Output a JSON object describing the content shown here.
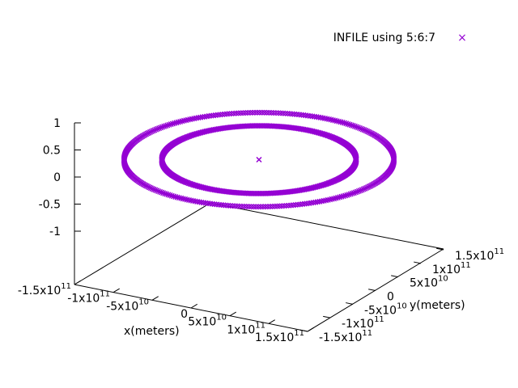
{
  "chart_data": {
    "type": "scatter",
    "subtype": "3d",
    "title": "",
    "legend": {
      "placement": "top-right",
      "entries": [
        {
          "label": "INFILE using 5:6:7",
          "marker": "×",
          "color": "#9400d3"
        }
      ]
    },
    "xlabel": "x(meters)",
    "ylabel": "y(meters)",
    "zlabel": "",
    "xlim": [
      -150000000000,
      150000000000
    ],
    "ylim": [
      -150000000000,
      150000000000
    ],
    "zlim": [
      -1,
      1
    ],
    "x_ticks": [
      {
        "value": -150000000000,
        "mantissa": "-1.5x10",
        "exp": "11"
      },
      {
        "value": -100000000000,
        "mantissa": "-1x10",
        "exp": "11"
      },
      {
        "value": -50000000000,
        "mantissa": "-5x10",
        "exp": "10"
      },
      {
        "value": 0,
        "mantissa": "0",
        "exp": ""
      },
      {
        "value": 50000000000,
        "mantissa": "5x10",
        "exp": "10"
      },
      {
        "value": 100000000000,
        "mantissa": "1x10",
        "exp": "11"
      },
      {
        "value": 150000000000,
        "mantissa": "1.5x10",
        "exp": "11"
      }
    ],
    "y_ticks": [
      {
        "value": -150000000000,
        "mantissa": "-1.5x10",
        "exp": "11"
      },
      {
        "value": -100000000000,
        "mantissa": "-1x10",
        "exp": "11"
      },
      {
        "value": -50000000000,
        "mantissa": "-5x10",
        "exp": "10"
      },
      {
        "value": 0,
        "mantissa": "0",
        "exp": ""
      },
      {
        "value": 50000000000,
        "mantissa": "5x10",
        "exp": "10"
      },
      {
        "value": 100000000000,
        "mantissa": "1x10",
        "exp": "11"
      },
      {
        "value": 150000000000,
        "mantissa": "1.5x10",
        "exp": "11"
      }
    ],
    "z_ticks": [
      {
        "value": 1,
        "label": "1"
      },
      {
        "value": 0.5,
        "label": "0.5"
      },
      {
        "value": 0,
        "label": "0"
      },
      {
        "value": -0.5,
        "label": "-0.5"
      },
      {
        "value": -1,
        "label": "-1"
      }
    ],
    "series": [
      {
        "color": "#9400d3",
        "marker": "x",
        "description": "orbits",
        "center": {
          "x": 0,
          "y": 0,
          "z": 0
        },
        "orbits": [
          {
            "radius": 108000000000,
            "z": 0
          },
          {
            "radius": 150000000000,
            "z": 0
          }
        ]
      }
    ]
  }
}
